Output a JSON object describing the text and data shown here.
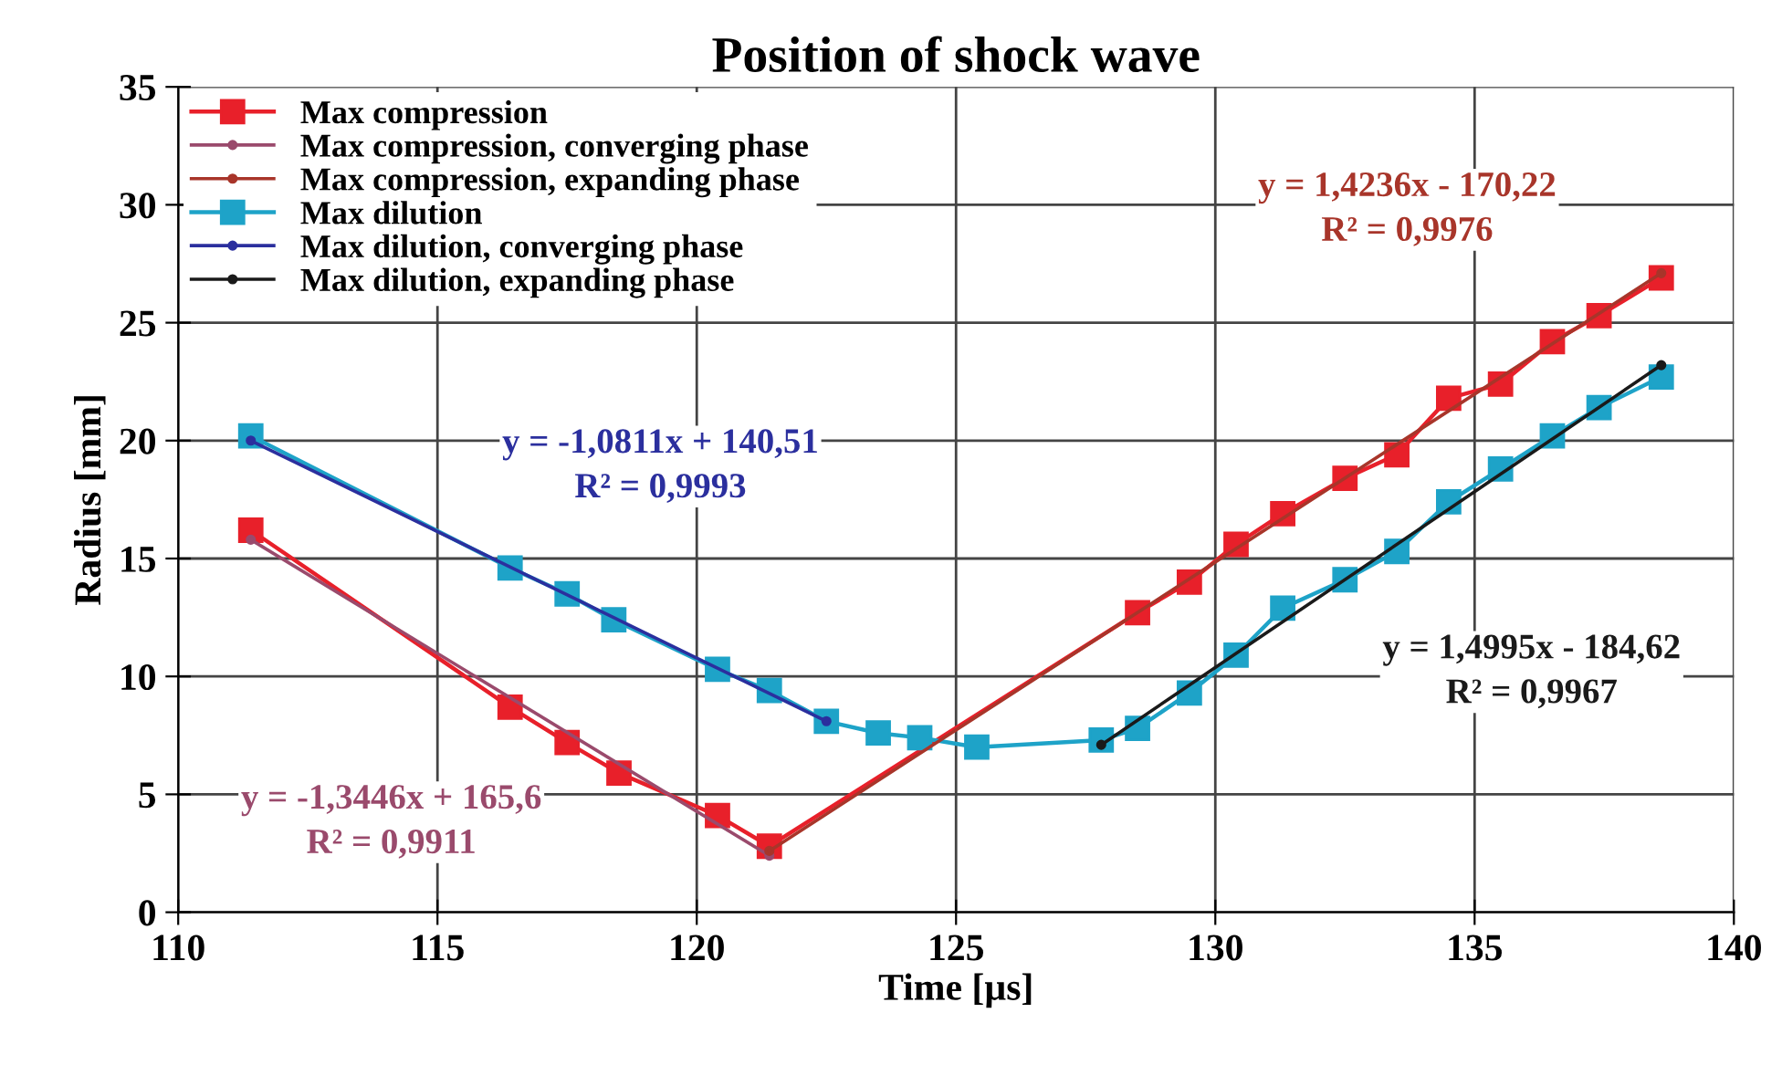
{
  "chart_data": {
    "type": "line",
    "title": "Position of shock wave",
    "xlabel": "Time [µs]",
    "ylabel": "Radius [mm]",
    "xlim": [
      110,
      140
    ],
    "xticks": [
      110,
      115,
      120,
      125,
      130,
      135,
      140
    ],
    "ylim": [
      0,
      35
    ],
    "yticks": [
      0,
      5,
      10,
      15,
      20,
      25,
      30,
      35
    ],
    "grid": true,
    "legend": "top left",
    "line_style": "solid",
    "series": [
      {
        "name": "Max compression",
        "color": "#e8202a",
        "marker": "square",
        "x": [
          111.4,
          116.4,
          117.5,
          118.5,
          120.4,
          121.4,
          128.5,
          129.5,
          130.4,
          131.3,
          132.5,
          133.5,
          134.5,
          135.5,
          136.5,
          137.4,
          138.6
        ],
        "values": [
          16.2,
          8.7,
          7.2,
          5.9,
          4.1,
          2.8,
          12.7,
          14.0,
          15.6,
          16.9,
          18.4,
          19.4,
          21.8,
          22.4,
          24.2,
          25.3,
          26.9
        ]
      },
      {
        "name": "Max compression, converging phase",
        "color": "#9a4a6c",
        "marker": "circle",
        "x": [
          111.4,
          121.4
        ],
        "values": [
          15.8,
          2.4
        ]
      },
      {
        "name": "Max compression, expanding phase",
        "color": "#a8352a",
        "marker": "circle",
        "x": [
          121.4,
          138.6
        ],
        "values": [
          2.6,
          27.1
        ]
      },
      {
        "name": "Max dilution",
        "color": "#1ea3c8",
        "marker": "square",
        "x": [
          111.4,
          116.4,
          117.5,
          118.4,
          120.4,
          121.4,
          122.5,
          123.5,
          124.3,
          125.4,
          127.8,
          128.5,
          129.5,
          130.4,
          131.3,
          132.5,
          133.5,
          134.5,
          135.5,
          136.5,
          137.4,
          138.6
        ],
        "values": [
          20.2,
          14.6,
          13.5,
          12.4,
          10.3,
          9.4,
          8.1,
          7.6,
          7.4,
          7.0,
          7.3,
          7.8,
          9.3,
          10.9,
          12.9,
          14.1,
          15.3,
          17.4,
          18.8,
          20.2,
          21.4,
          22.7
        ]
      },
      {
        "name": "Max dilution, converging phase",
        "color": "#2b2f9e",
        "marker": "circle",
        "x": [
          111.4,
          122.5
        ],
        "values": [
          20.0,
          8.1
        ]
      },
      {
        "name": "Max dilution, expanding phase",
        "color": "#1a1a1a",
        "marker": "circle",
        "x": [
          127.8,
          138.6
        ],
        "values": [
          7.1,
          23.2
        ]
      }
    ],
    "annotations": [
      "y = -1,3446x + 165,6\nR² = 0,9911",
      "y = 1,4236x - 170,22\nR² = 0,9976",
      "y = -1,0811x + 140,51\nR² = 0,9993",
      "y = 1,4995x - 184,62\nR² = 0,9967"
    ]
  }
}
